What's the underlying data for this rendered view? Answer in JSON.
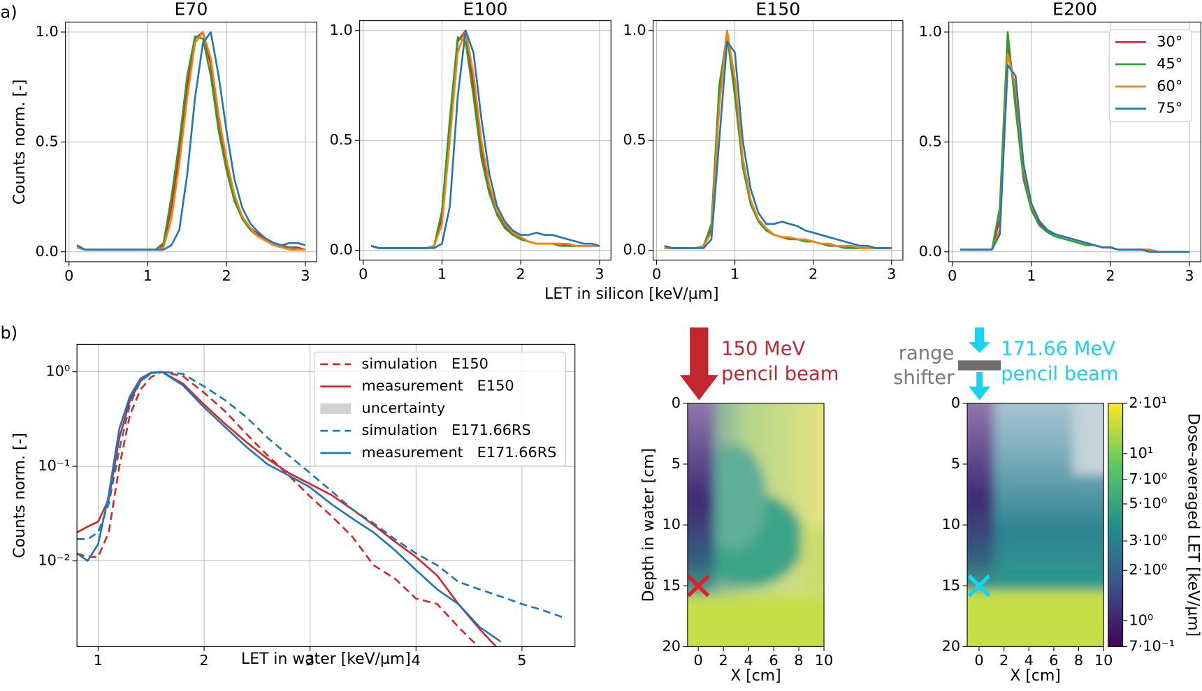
{
  "chart_data": [
    {
      "type": "line",
      "panel_label": "a)",
      "title": "E70",
      "ylabel": "Counts norm. [-]",
      "x": [
        0.1,
        0.2,
        0.3,
        0.4,
        0.5,
        0.6,
        0.7,
        0.8,
        0.9,
        1.0,
        1.1,
        1.2,
        1.3,
        1.4,
        1.5,
        1.6,
        1.7,
        1.8,
        1.9,
        2.0,
        2.1,
        2.2,
        2.3,
        2.4,
        2.5,
        2.6,
        2.7,
        2.8,
        2.9,
        3.0
      ],
      "series": [
        {
          "color": "#d62728",
          "values": [
            0.03,
            0.01,
            0.01,
            0.01,
            0.01,
            0.01,
            0.01,
            0.01,
            0.01,
            0.01,
            0.01,
            0.03,
            0.2,
            0.45,
            0.75,
            0.97,
            1.0,
            0.85,
            0.6,
            0.4,
            0.25,
            0.16,
            0.11,
            0.08,
            0.06,
            0.04,
            0.03,
            0.02,
            0.02,
            0.01
          ]
        },
        {
          "color": "#2ca02c",
          "values": [
            0.02,
            0.01,
            0.01,
            0.01,
            0.01,
            0.01,
            0.01,
            0.01,
            0.01,
            0.01,
            0.01,
            0.04,
            0.25,
            0.5,
            0.8,
            0.98,
            0.97,
            0.8,
            0.55,
            0.37,
            0.23,
            0.15,
            0.1,
            0.07,
            0.05,
            0.03,
            0.02,
            0.02,
            0.01,
            0.01
          ]
        },
        {
          "color": "#ff7f0e",
          "values": [
            0.02,
            0.01,
            0.01,
            0.01,
            0.01,
            0.01,
            0.01,
            0.01,
            0.01,
            0.01,
            0.01,
            0.02,
            0.15,
            0.4,
            0.7,
            0.95,
            1.0,
            0.88,
            0.62,
            0.42,
            0.26,
            0.16,
            0.11,
            0.07,
            0.05,
            0.03,
            0.02,
            0.01,
            0.01,
            0.01
          ]
        },
        {
          "color": "#1f77b4",
          "values": [
            0.03,
            0.01,
            0.01,
            0.01,
            0.01,
            0.01,
            0.01,
            0.01,
            0.01,
            0.01,
            0.01,
            0.01,
            0.03,
            0.1,
            0.35,
            0.7,
            0.95,
            1.0,
            0.8,
            0.55,
            0.33,
            0.2,
            0.13,
            0.09,
            0.06,
            0.04,
            0.03,
            0.04,
            0.04,
            0.03
          ]
        }
      ],
      "xlim": [
        -0.045,
        3.145
      ],
      "ylim": [
        -0.045,
        1.045
      ],
      "xticks": [
        0,
        1,
        2,
        3
      ],
      "yticks": [
        {
          "value": 0,
          "label": "0.0"
        },
        0.5,
        {
          "value": 1,
          "label": "1.0"
        }
      ],
      "grid": true
    },
    {
      "type": "line",
      "title": "E100",
      "xlabel": "LET in silicon [keV/µm]",
      "x": [
        0.1,
        0.2,
        0.3,
        0.4,
        0.5,
        0.6,
        0.7,
        0.8,
        0.9,
        1.0,
        1.1,
        1.2,
        1.3,
        1.4,
        1.5,
        1.6,
        1.7,
        1.8,
        1.9,
        2.0,
        2.1,
        2.2,
        2.3,
        2.4,
        2.5,
        2.6,
        2.7,
        2.8,
        2.9,
        3.0
      ],
      "series": [
        {
          "color": "#d62728",
          "values": [
            0.02,
            0.01,
            0.01,
            0.01,
            0.01,
            0.01,
            0.01,
            0.01,
            0.02,
            0.15,
            0.55,
            0.95,
            1.0,
            0.75,
            0.45,
            0.28,
            0.17,
            0.11,
            0.08,
            0.05,
            0.04,
            0.03,
            0.03,
            0.03,
            0.03,
            0.02,
            0.02,
            0.02,
            0.02,
            0.02
          ]
        },
        {
          "color": "#2ca02c",
          "values": [
            0.02,
            0.01,
            0.01,
            0.01,
            0.01,
            0.01,
            0.01,
            0.01,
            0.02,
            0.18,
            0.6,
            0.97,
            0.95,
            0.7,
            0.42,
            0.26,
            0.16,
            0.1,
            0.07,
            0.05,
            0.04,
            0.03,
            0.03,
            0.03,
            0.02,
            0.02,
            0.02,
            0.02,
            0.02,
            0.02
          ]
        },
        {
          "color": "#ff7f0e",
          "values": [
            0.02,
            0.01,
            0.01,
            0.01,
            0.01,
            0.01,
            0.01,
            0.01,
            0.02,
            0.12,
            0.5,
            0.9,
            1.0,
            0.8,
            0.5,
            0.3,
            0.18,
            0.12,
            0.08,
            0.06,
            0.04,
            0.03,
            0.03,
            0.03,
            0.03,
            0.03,
            0.02,
            0.02,
            0.02,
            0.02
          ]
        },
        {
          "color": "#1f77b4",
          "values": [
            0.02,
            0.01,
            0.01,
            0.01,
            0.01,
            0.01,
            0.01,
            0.01,
            0.01,
            0.03,
            0.2,
            0.7,
            1.0,
            0.9,
            0.6,
            0.35,
            0.2,
            0.13,
            0.09,
            0.07,
            0.07,
            0.08,
            0.07,
            0.07,
            0.06,
            0.05,
            0.04,
            0.03,
            0.03,
            0.02
          ]
        }
      ],
      "xlim": [
        -0.045,
        3.145
      ],
      "ylim": [
        -0.045,
        1.045
      ],
      "xticks": [
        0,
        1,
        2,
        3
      ],
      "yticks": [
        {
          "value": 0,
          "label": "0.0"
        },
        0.5,
        {
          "value": 1,
          "label": "1.0"
        }
      ],
      "grid": true
    },
    {
      "type": "line",
      "title": "E150",
      "x": [
        0.1,
        0.2,
        0.3,
        0.4,
        0.5,
        0.6,
        0.7,
        0.8,
        0.9,
        1.0,
        1.1,
        1.2,
        1.3,
        1.4,
        1.5,
        1.6,
        1.7,
        1.8,
        1.9,
        2.0,
        2.1,
        2.2,
        2.3,
        2.4,
        2.5,
        2.6,
        2.7,
        2.8,
        2.9,
        3.0
      ],
      "series": [
        {
          "color": "#d62728",
          "values": [
            0.01,
            0.01,
            0.01,
            0.01,
            0.01,
            0.02,
            0.1,
            0.7,
            1.0,
            0.75,
            0.4,
            0.22,
            0.14,
            0.1,
            0.07,
            0.06,
            0.05,
            0.05,
            0.04,
            0.04,
            0.03,
            0.03,
            0.02,
            0.02,
            0.01,
            0.01,
            0.01,
            0.01,
            0.01,
            0.01
          ]
        },
        {
          "color": "#2ca02c",
          "values": [
            0.01,
            0.01,
            0.01,
            0.01,
            0.01,
            0.02,
            0.12,
            0.75,
            0.98,
            0.7,
            0.38,
            0.21,
            0.13,
            0.09,
            0.07,
            0.06,
            0.05,
            0.05,
            0.04,
            0.04,
            0.03,
            0.02,
            0.02,
            0.01,
            0.01,
            0.01,
            0.01,
            0.01,
            0.01,
            0.01
          ]
        },
        {
          "color": "#ff7f0e",
          "values": [
            0.01,
            0.01,
            0.01,
            0.01,
            0.01,
            0.02,
            0.08,
            0.65,
            1.0,
            0.78,
            0.42,
            0.23,
            0.14,
            0.1,
            0.07,
            0.06,
            0.06,
            0.05,
            0.05,
            0.04,
            0.03,
            0.03,
            0.02,
            0.02,
            0.02,
            0.01,
            0.01,
            0.01,
            0.01,
            0.01
          ]
        },
        {
          "color": "#1f77b4",
          "values": [
            0.02,
            0.01,
            0.01,
            0.01,
            0.01,
            0.01,
            0.05,
            0.5,
            0.95,
            0.9,
            0.5,
            0.28,
            0.17,
            0.12,
            0.12,
            0.13,
            0.12,
            0.11,
            0.09,
            0.08,
            0.07,
            0.06,
            0.05,
            0.04,
            0.03,
            0.02,
            0.02,
            0.01,
            0.01,
            0.01
          ]
        }
      ],
      "xlim": [
        -0.045,
        3.145
      ],
      "ylim": [
        -0.045,
        1.045
      ],
      "xticks": [
        0,
        1,
        2,
        3
      ],
      "yticks": [
        {
          "value": 0,
          "label": "0.0"
        },
        0.5,
        {
          "value": 1,
          "label": "1.0"
        }
      ],
      "grid": true
    },
    {
      "type": "line",
      "title": "E200",
      "x": [
        0.1,
        0.2,
        0.3,
        0.4,
        0.5,
        0.6,
        0.7,
        0.8,
        0.9,
        1.0,
        1.1,
        1.2,
        1.3,
        1.4,
        1.5,
        1.6,
        1.7,
        1.8,
        1.9,
        2.0,
        2.1,
        2.2,
        2.3,
        2.4,
        2.5,
        2.6,
        2.7,
        2.8,
        2.9,
        3.0
      ],
      "series": [
        {
          "name": "30°",
          "color": "#d62728",
          "values": [
            0.01,
            0.01,
            0.01,
            0.01,
            0.01,
            0.15,
            0.95,
            0.7,
            0.35,
            0.2,
            0.13,
            0.1,
            0.08,
            0.07,
            0.06,
            0.05,
            0.04,
            0.03,
            0.02,
            0.02,
            0.01,
            0.01,
            0.01,
            0.01,
            0.01,
            0.0,
            0.0,
            0.0,
            0.0,
            0.0
          ]
        },
        {
          "name": "45°",
          "color": "#2ca02c",
          "values": [
            0.01,
            0.01,
            0.01,
            0.01,
            0.01,
            0.2,
            1.0,
            0.65,
            0.33,
            0.19,
            0.12,
            0.09,
            0.07,
            0.06,
            0.05,
            0.04,
            0.03,
            0.03,
            0.02,
            0.02,
            0.01,
            0.01,
            0.01,
            0.01,
            0.0,
            0.0,
            0.0,
            0.0,
            0.0,
            0.0
          ]
        },
        {
          "name": "60°",
          "color": "#ff7f0e",
          "values": [
            0.01,
            0.01,
            0.01,
            0.01,
            0.01,
            0.1,
            0.9,
            0.75,
            0.38,
            0.21,
            0.14,
            0.1,
            0.08,
            0.07,
            0.06,
            0.05,
            0.04,
            0.03,
            0.02,
            0.02,
            0.01,
            0.01,
            0.01,
            0.01,
            0.01,
            0.0,
            0.0,
            0.0,
            0.0,
            0.0
          ]
        },
        {
          "name": "75°",
          "color": "#1f77b4",
          "values": [
            0.01,
            0.01,
            0.01,
            0.01,
            0.01,
            0.08,
            0.85,
            0.8,
            0.4,
            0.22,
            0.14,
            0.1,
            0.08,
            0.07,
            0.06,
            0.05,
            0.04,
            0.03,
            0.02,
            0.02,
            0.01,
            0.01,
            0.01,
            0.01,
            0.0,
            0.0,
            0.0,
            0.0,
            0.0,
            0.0
          ]
        }
      ],
      "xlim": [
        -0.045,
        3.145
      ],
      "ylim": [
        -0.045,
        1.045
      ],
      "xticks": [
        0,
        1,
        2,
        3
      ],
      "yticks": [
        {
          "value": 0,
          "label": "0.0"
        },
        0.5,
        {
          "value": 1,
          "label": "1.0"
        }
      ],
      "grid": true,
      "legend": "upper right"
    },
    {
      "type": "line",
      "panel_label": "b)",
      "xlabel": "LET in water [keV/µm]",
      "ylabel": "Counts norm. [-]",
      "ylog": true,
      "x": [
        0.8,
        0.9,
        1.0,
        1.1,
        1.2,
        1.3,
        1.4,
        1.5,
        1.6,
        1.8,
        2.0,
        2.2,
        2.4,
        2.6,
        2.8,
        3.0,
        3.2,
        3.4,
        3.6,
        3.8,
        4.0,
        4.2,
        4.4,
        4.6,
        4.8,
        5.0,
        5.2,
        5.4
      ],
      "series": [
        {
          "name": "simulation   E150",
          "color": "#d62728",
          "dash": true,
          "values": [
            0.012,
            0.011,
            0.011,
            0.02,
            0.1,
            0.35,
            0.65,
            0.88,
            1.0,
            0.9,
            0.6,
            0.38,
            0.22,
            0.13,
            0.08,
            0.048,
            0.03,
            0.018,
            0.009,
            0.0065,
            0.004,
            0.0035,
            0.002,
            0.0012,
            null,
            null,
            null,
            null
          ]
        },
        {
          "name": "measurement   E150",
          "color": "#d62728",
          "values": [
            0.02,
            0.023,
            0.026,
            0.045,
            0.2,
            0.5,
            0.8,
            0.97,
            1.0,
            0.75,
            0.45,
            0.28,
            0.18,
            0.12,
            0.085,
            0.065,
            0.05,
            0.035,
            0.024,
            0.016,
            0.011,
            0.007,
            0.0035,
            0.0019,
            0.0011,
            null,
            null,
            null
          ]
        },
        {
          "name": "uncertainty",
          "color": "#d3d3d3",
          "band": true
        },
        {
          "name": "simulation   E171.66RS",
          "color": "#1f77b4",
          "dash": true,
          "values": [
            0.017,
            0.017,
            0.02,
            0.04,
            0.15,
            0.45,
            0.8,
            0.96,
            1.0,
            0.95,
            0.7,
            0.5,
            0.33,
            0.2,
            0.13,
            0.085,
            0.055,
            0.035,
            0.025,
            0.017,
            0.012,
            0.009,
            0.006,
            0.005,
            0.0042,
            0.0035,
            0.003,
            0.0025
          ]
        },
        {
          "name": "measurement   E171.66RS",
          "color": "#1f77b4",
          "values": [
            0.012,
            0.01,
            0.015,
            0.05,
            0.25,
            0.55,
            0.85,
            0.98,
            1.0,
            0.72,
            0.42,
            0.26,
            0.16,
            0.105,
            0.08,
            0.06,
            0.04,
            0.028,
            0.02,
            0.013,
            0.008,
            0.005,
            0.0035,
            0.002,
            0.0014,
            null,
            null,
            null
          ]
        }
      ],
      "xlim": [
        0.8,
        5.5
      ],
      "ylim": [
        0.00124,
        1.95
      ],
      "xticks": [
        1,
        2,
        3,
        4,
        5
      ],
      "yticks": [
        {
          "value": 0.01,
          "label": "10⁻²"
        },
        {
          "value": 0.1,
          "label": "10⁻¹"
        },
        {
          "value": 1,
          "label": "10⁰"
        }
      ],
      "grid": true,
      "legend": "upper right"
    },
    {
      "type": "heatmap",
      "xlabel": "X [cm]",
      "ylabel": "Depth in water [cm]",
      "annotation": [
        "150 MeV",
        "pencil beam"
      ],
      "annotation_color": "#c1272d",
      "marker": {
        "x": 0,
        "y": 15,
        "color": "#e0202a"
      },
      "xlim": [
        -0.85,
        10
      ],
      "ylim": [
        20,
        0
      ],
      "xticks": [
        0,
        2,
        4,
        6,
        8,
        10
      ],
      "yticks": [
        0,
        5,
        10,
        15,
        20
      ]
    },
    {
      "type": "heatmap",
      "xlabel": "X [cm]",
      "annotation": [
        "171.66 MeV",
        "pencil beam"
      ],
      "annotation_color": "#18d2f2",
      "shifter_label": [
        "range",
        "shifter"
      ],
      "marker": {
        "x": 0,
        "y": 15,
        "color": "#18d2f2"
      },
      "xlim": [
        -0.95,
        10
      ],
      "ylim": [
        20,
        0
      ],
      "xticks": [
        0,
        2,
        4,
        6,
        8,
        10
      ],
      "yticks": [
        0,
        5,
        10,
        15,
        20
      ],
      "colorbar": {
        "label": "Dose-averaged LET [keV/µm]",
        "log": true,
        "lim": [
          0.7,
          20
        ],
        "ticks": [
          {
            "value": 20,
            "label": "2·10¹"
          },
          {
            "value": 10,
            "label": "10¹"
          },
          {
            "value": 7,
            "label": "7·10⁰"
          },
          {
            "value": 5,
            "label": "5·10⁰"
          },
          {
            "value": 3,
            "label": "3·10⁰"
          },
          {
            "value": 2,
            "label": "2·10⁰"
          },
          {
            "value": 1,
            "label": "10⁰"
          },
          {
            "value": 0.7,
            "label": "7·10⁻¹"
          }
        ]
      }
    }
  ]
}
